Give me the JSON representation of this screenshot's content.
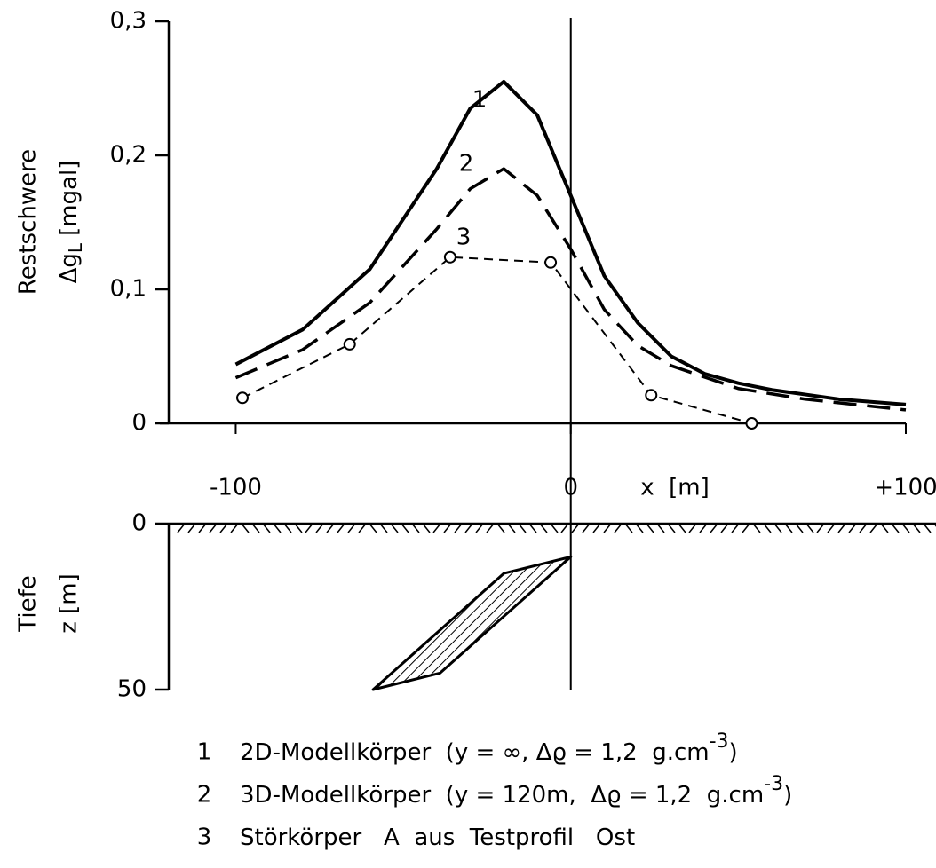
{
  "chart_data": {
    "type": "line",
    "ylabel": [
      "Restschwere",
      "Δg",
      "L",
      "[mgal]"
    ],
    "xlabel": "x  [m]",
    "xlim": [
      -120,
      100
    ],
    "ylim": [
      0,
      0.3
    ],
    "xticks": [
      -100,
      0,
      {
        "value": 100,
        "label": "+100"
      }
    ],
    "yticks": [
      0,
      {
        "value": 0.1,
        "label": "0,1"
      },
      {
        "value": 0.2,
        "label": "0,2"
      },
      {
        "value": 0.3,
        "label": "0,3"
      }
    ],
    "series": [
      {
        "name": "1",
        "color": "#000000",
        "linestyle": "solid",
        "markers": false,
        "x": [
          -100,
          -80,
          -60,
          -40,
          -30,
          -20,
          -10,
          0,
          10,
          20,
          30,
          40,
          50,
          60,
          80,
          100
        ],
        "values": [
          0.044,
          0.07,
          0.115,
          0.19,
          0.235,
          0.255,
          0.23,
          0.17,
          0.11,
          0.075,
          0.05,
          0.037,
          0.03,
          0.025,
          0.018,
          0.014
        ]
      },
      {
        "name": "2",
        "color": "#000000",
        "linestyle": "dashed",
        "markers": false,
        "x": [
          -100,
          -80,
          -60,
          -40,
          -30,
          -20,
          -10,
          0,
          10,
          20,
          30,
          50,
          70,
          100
        ],
        "values": [
          0.034,
          0.055,
          0.09,
          0.145,
          0.175,
          0.19,
          0.17,
          0.13,
          0.085,
          0.058,
          0.043,
          0.026,
          0.018,
          0.01
        ]
      },
      {
        "name": "3",
        "color": "#000000",
        "linestyle": "dotted",
        "markers": true,
        "x": [
          -98,
          -66,
          -36,
          -6,
          24,
          54
        ],
        "values": [
          0.019,
          0.059,
          0.124,
          0.12,
          0.021,
          0
        ]
      }
    ],
    "depth": {
      "label": [
        "Tiefe",
        "z [m]"
      ],
      "zlim": [
        0,
        50
      ],
      "zticks": [
        0,
        50
      ],
      "body_x": [
        0,
        -20,
        -59,
        -39
      ],
      "body_z": [
        10,
        15,
        50,
        45
      ]
    },
    "legend": [
      {
        "number": "1",
        "text": "2D-Modellkörper  (y = ∞, Δϱ = 1,2  g.cm",
        "sup": "-3",
        "end": ")"
      },
      {
        "number": "2",
        "text": "3D-Modellkörper  (y = 120m,  Δϱ = 1,2  g.cm",
        "sup": "-3",
        "end": ")"
      },
      {
        "number": "3",
        "text": "Störkörper   A  aus  Testprofil   Ost"
      }
    ]
  }
}
